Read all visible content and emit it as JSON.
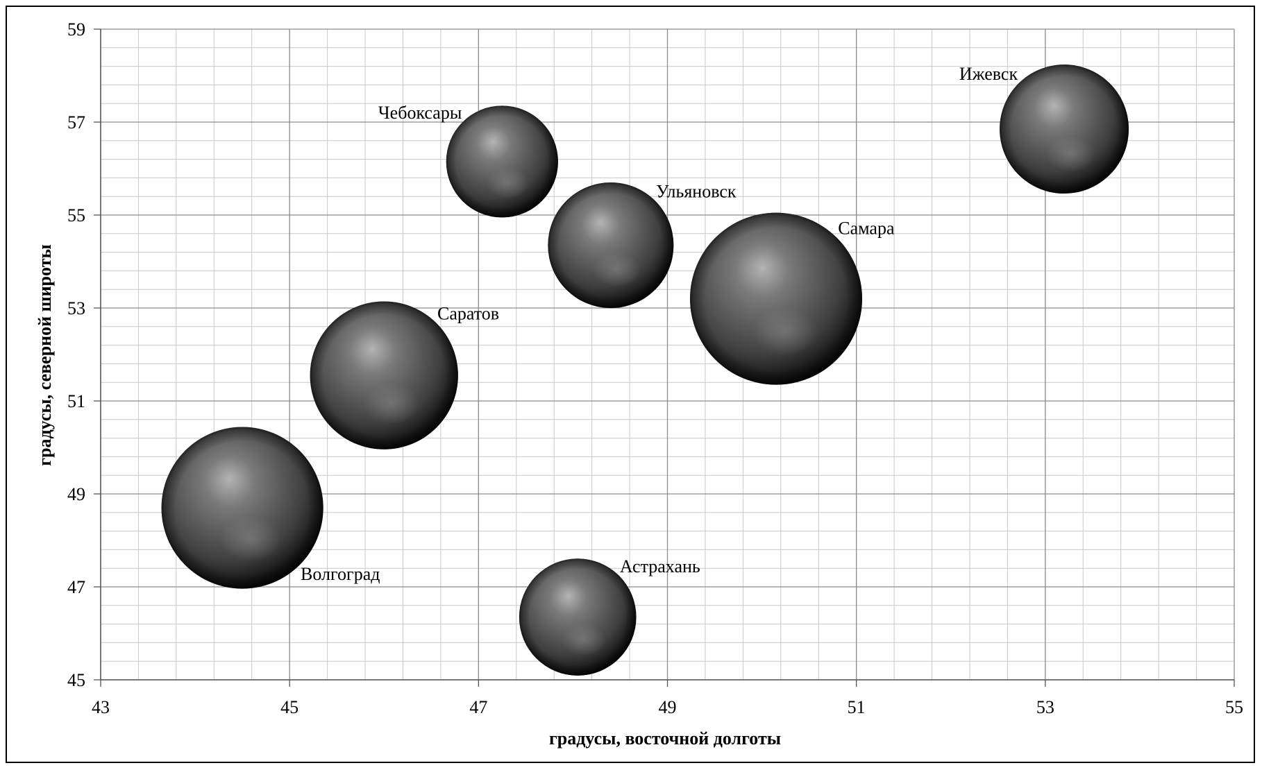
{
  "chart_data": {
    "type": "bubble",
    "xlabel": "градусы, восточной долготы",
    "ylabel": "градусы, северной широты",
    "xlim": [
      43,
      55
    ],
    "ylim": [
      45,
      59
    ],
    "x_ticks": [
      "43",
      "45",
      "47",
      "49",
      "51",
      "53",
      "55"
    ],
    "y_ticks": [
      "45",
      "47",
      "49",
      "51",
      "53",
      "55",
      "57",
      "59"
    ],
    "grid": true,
    "points": [
      {
        "label": "Чебоксары",
        "x": 47.25,
        "y": 56.15,
        "size": 0.65,
        "label_pos": "top-left"
      },
      {
        "label": "Ульяновск",
        "x": 48.4,
        "y": 54.35,
        "size": 0.73,
        "label_pos": "top-right"
      },
      {
        "label": "Ижевск",
        "x": 53.2,
        "y": 56.85,
        "size": 0.75,
        "label_pos": "top-left"
      },
      {
        "label": "Самара",
        "x": 50.15,
        "y": 53.2,
        "size": 1.0,
        "label_pos": "top-right"
      },
      {
        "label": "Саратов",
        "x": 46.0,
        "y": 51.55,
        "size": 0.86,
        "label_pos": "top-right"
      },
      {
        "label": "Волгоград",
        "x": 44.5,
        "y": 48.7,
        "size": 0.94,
        "label_pos": "bottom-right"
      },
      {
        "label": "Астрахань",
        "x": 48.05,
        "y": 46.35,
        "size": 0.68,
        "label_pos": "top-right"
      }
    ]
  },
  "colors": {
    "bubble_highlight": "#a8a8a8",
    "bubble_mid": "#6e6e6e",
    "bubble_dark": "#141414",
    "grid_major": "#8c8c8c",
    "grid_minor": "#c8c8c8"
  }
}
